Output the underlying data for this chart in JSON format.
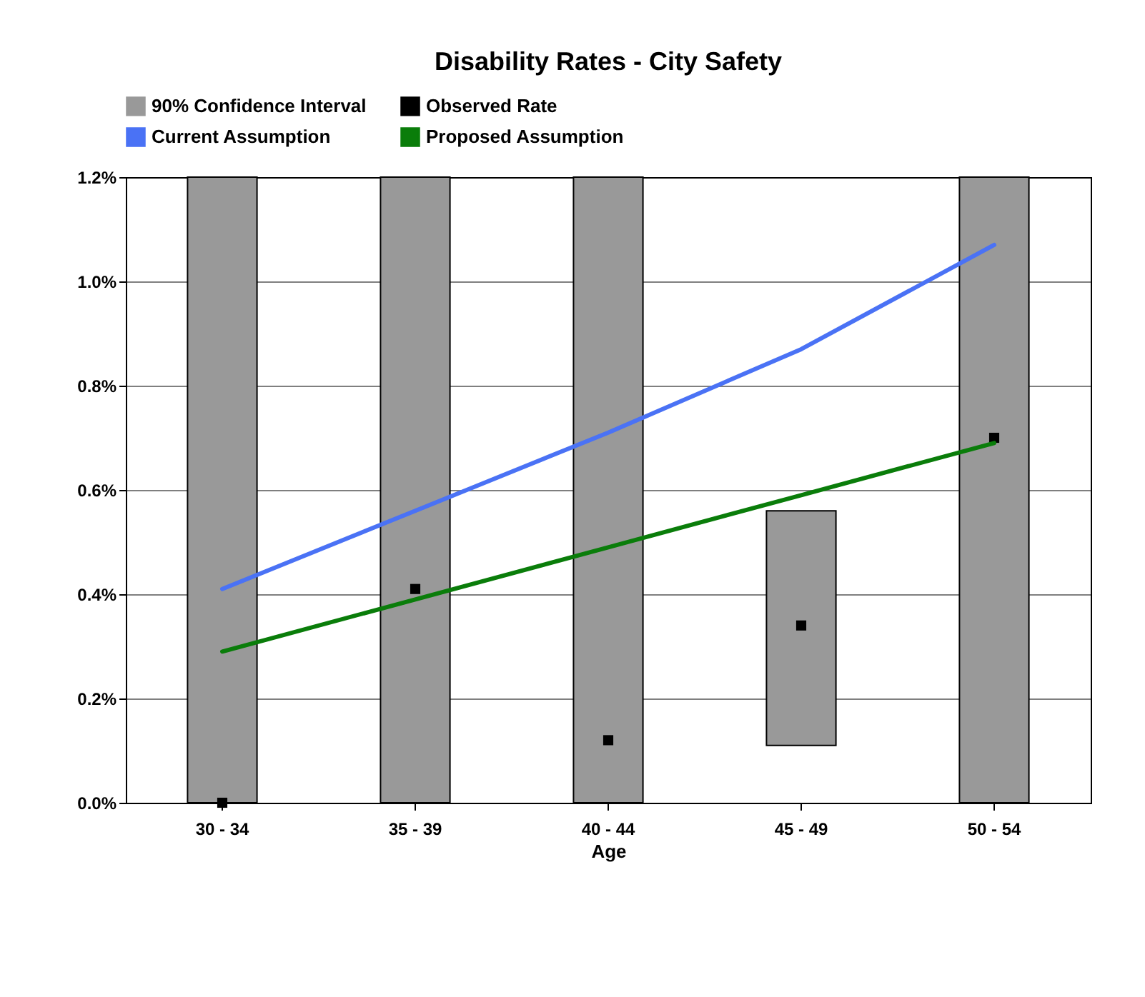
{
  "chart_data": {
    "type": "bar",
    "title": "Disability Rates - City Safety",
    "xlabel": "Age",
    "categories": [
      "30 - 34",
      "35 - 39",
      "40 - 44",
      "45 - 49",
      "50 - 54"
    ],
    "series": [
      {
        "name": "90% Confidence Interval",
        "color": "#999999",
        "base": [
          0,
          0,
          0,
          0.11,
          0
        ],
        "values": [
          1.2,
          1.2,
          1.2,
          0.45,
          1.2
        ]
      },
      {
        "type": "scatter",
        "name": "Observed Rate",
        "color": "#000000",
        "values": [
          0,
          0.41,
          0.12,
          0.34,
          0.7
        ]
      },
      {
        "type": "line",
        "name": "Current Assumption",
        "color": "#4a72f5",
        "values": [
          0.41,
          0.56,
          0.71,
          0.87,
          1.07
        ]
      },
      {
        "type": "line",
        "name": "Proposed Assumption",
        "color": "#0a7d0a",
        "values": [
          0.29,
          0.39,
          0.49,
          0.59,
          0.69
        ]
      }
    ],
    "ylim": [
      0,
      1.2
    ],
    "yticks": [
      {
        "value": 0,
        "label": "0.0%"
      },
      {
        "value": 0.2,
        "label": "0.2%"
      },
      {
        "value": 0.4,
        "label": "0.4%"
      },
      {
        "value": 0.6,
        "label": "0.6%"
      },
      {
        "value": 0.8,
        "label": "0.8%"
      },
      {
        "value": 1,
        "label": "1.0%"
      },
      {
        "value": 1.2,
        "label": "1.2%"
      }
    ],
    "grid": "y",
    "legend": "top"
  }
}
